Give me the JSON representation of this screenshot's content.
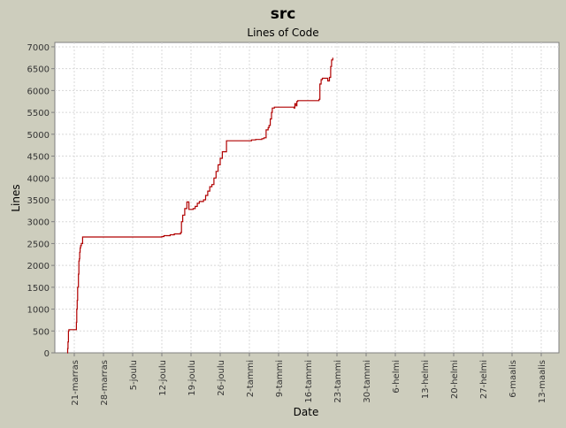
{
  "chart_data": {
    "type": "line",
    "title": "src",
    "subtitle": "Lines of Code",
    "xlabel": "Date",
    "ylabel": "Lines",
    "ylim": [
      0,
      7100
    ],
    "yticks": [
      0,
      500,
      1000,
      1500,
      2000,
      2500,
      3000,
      3500,
      4000,
      4500,
      5000,
      5500,
      6000,
      6500,
      7000
    ],
    "xticks": [
      "21-marras",
      "28-marras",
      "5-joulu",
      "12-joulu",
      "19-joulu",
      "26-joulu",
      "2-tammi",
      "9-tammi",
      "16-tammi",
      "23-tammi",
      "30-tammi",
      "6-helmi",
      "13-helmi",
      "20-helmi",
      "27-helmi",
      "6-maalis",
      "13-maalis"
    ],
    "grid": true,
    "series": [
      {
        "color": "#b00000",
        "x": [
          -1.7,
          -1.6,
          -1.5,
          -1.4,
          -1.3,
          0.5,
          0.6,
          0.7,
          0.8,
          1,
          1.1,
          1.2,
          1.3,
          1.4,
          1.5,
          1.7,
          2,
          2.3,
          2.5,
          20.5,
          21,
          21.5,
          22,
          23,
          23.5,
          24,
          24.6,
          25.5,
          25.7,
          26,
          26.5,
          27,
          27.5,
          28.5,
          29,
          29.5,
          30,
          31,
          31.5,
          32,
          32.5,
          33,
          33.5,
          34,
          34.5,
          35,
          35.5,
          35.6,
          36,
          36.5,
          40,
          42.5,
          43.5,
          45,
          45.5,
          46,
          46.5,
          46.7,
          47,
          47.3,
          47.5,
          48,
          52.5,
          52.7,
          52.9,
          53.2,
          53.4,
          53.6,
          58.5,
          58.7,
          58.9,
          59.2,
          59.5,
          60.5,
          60.8,
          61.2,
          61.5,
          61.7,
          62
        ],
        "values": [
          0,
          100,
          250,
          500,
          530,
          700,
          1000,
          1200,
          1500,
          1800,
          2100,
          2150,
          2300,
          2400,
          2450,
          2500,
          2650,
          2650,
          2650,
          2650,
          2660,
          2680,
          2680,
          2700,
          2700,
          2720,
          2720,
          2750,
          3000,
          3150,
          3300,
          3450,
          3280,
          3300,
          3350,
          3420,
          3460,
          3500,
          3600,
          3700,
          3800,
          3850,
          4000,
          4150,
          4300,
          4450,
          4600,
          4600,
          4600,
          4850,
          4850,
          4870,
          4880,
          4900,
          4920,
          5100,
          5150,
          5200,
          5350,
          5500,
          5600,
          5620,
          5620,
          5600,
          5700,
          5650,
          5750,
          5770,
          5770,
          5800,
          6150,
          6250,
          6280,
          6280,
          6220,
          6300,
          6550,
          6700,
          6750
        ]
      }
    ]
  }
}
